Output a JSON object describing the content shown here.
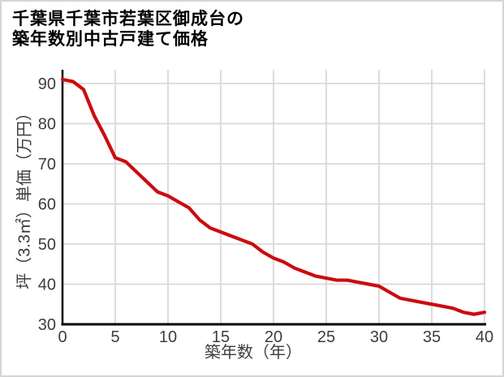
{
  "title": {
    "line1": "千葉県千葉市若葉区御成台の",
    "line2": "築年数別中古戸建て価格"
  },
  "chart_data": {
    "type": "line",
    "title": "千葉県千葉市若葉区御成台の築年数別中古戸建て価格",
    "xlabel": "築年数（年）",
    "ylabel": "坪（3.3㎡）単価（万円）",
    "x": [
      0,
      1,
      2,
      3,
      4,
      5,
      6,
      7,
      8,
      9,
      10,
      11,
      12,
      13,
      14,
      15,
      16,
      17,
      18,
      19,
      20,
      21,
      22,
      23,
      24,
      25,
      26,
      27,
      28,
      29,
      30,
      31,
      32,
      33,
      34,
      35,
      36,
      37,
      38,
      39,
      40
    ],
    "values": [
      91,
      90.5,
      88.5,
      82,
      77,
      71.5,
      70.5,
      68,
      65.5,
      63,
      62,
      60.5,
      59,
      56,
      54,
      53,
      52,
      51,
      50,
      48,
      46.5,
      45.5,
      44,
      43,
      42,
      41.5,
      41,
      41,
      40.5,
      40,
      39.5,
      38,
      36.5,
      36,
      35.5,
      35,
      34.5,
      34,
      33,
      32.5,
      33
    ],
    "xlim": [
      0,
      40
    ],
    "ylim": [
      30,
      90
    ],
    "x_ticks": [
      0,
      5,
      10,
      15,
      20,
      25,
      30,
      35,
      40
    ],
    "y_ticks": [
      30,
      40,
      50,
      60,
      70,
      80,
      90
    ],
    "grid": true,
    "legend": false,
    "legend_position": "none"
  },
  "colors": {
    "line": "#cb0c10",
    "grid": "#d9d9d9",
    "axis": "#000000",
    "tick_text": "#3d3d3d",
    "title_text": "#000000",
    "frame_border": "#d5d5d5",
    "background": "#ffffff"
  }
}
